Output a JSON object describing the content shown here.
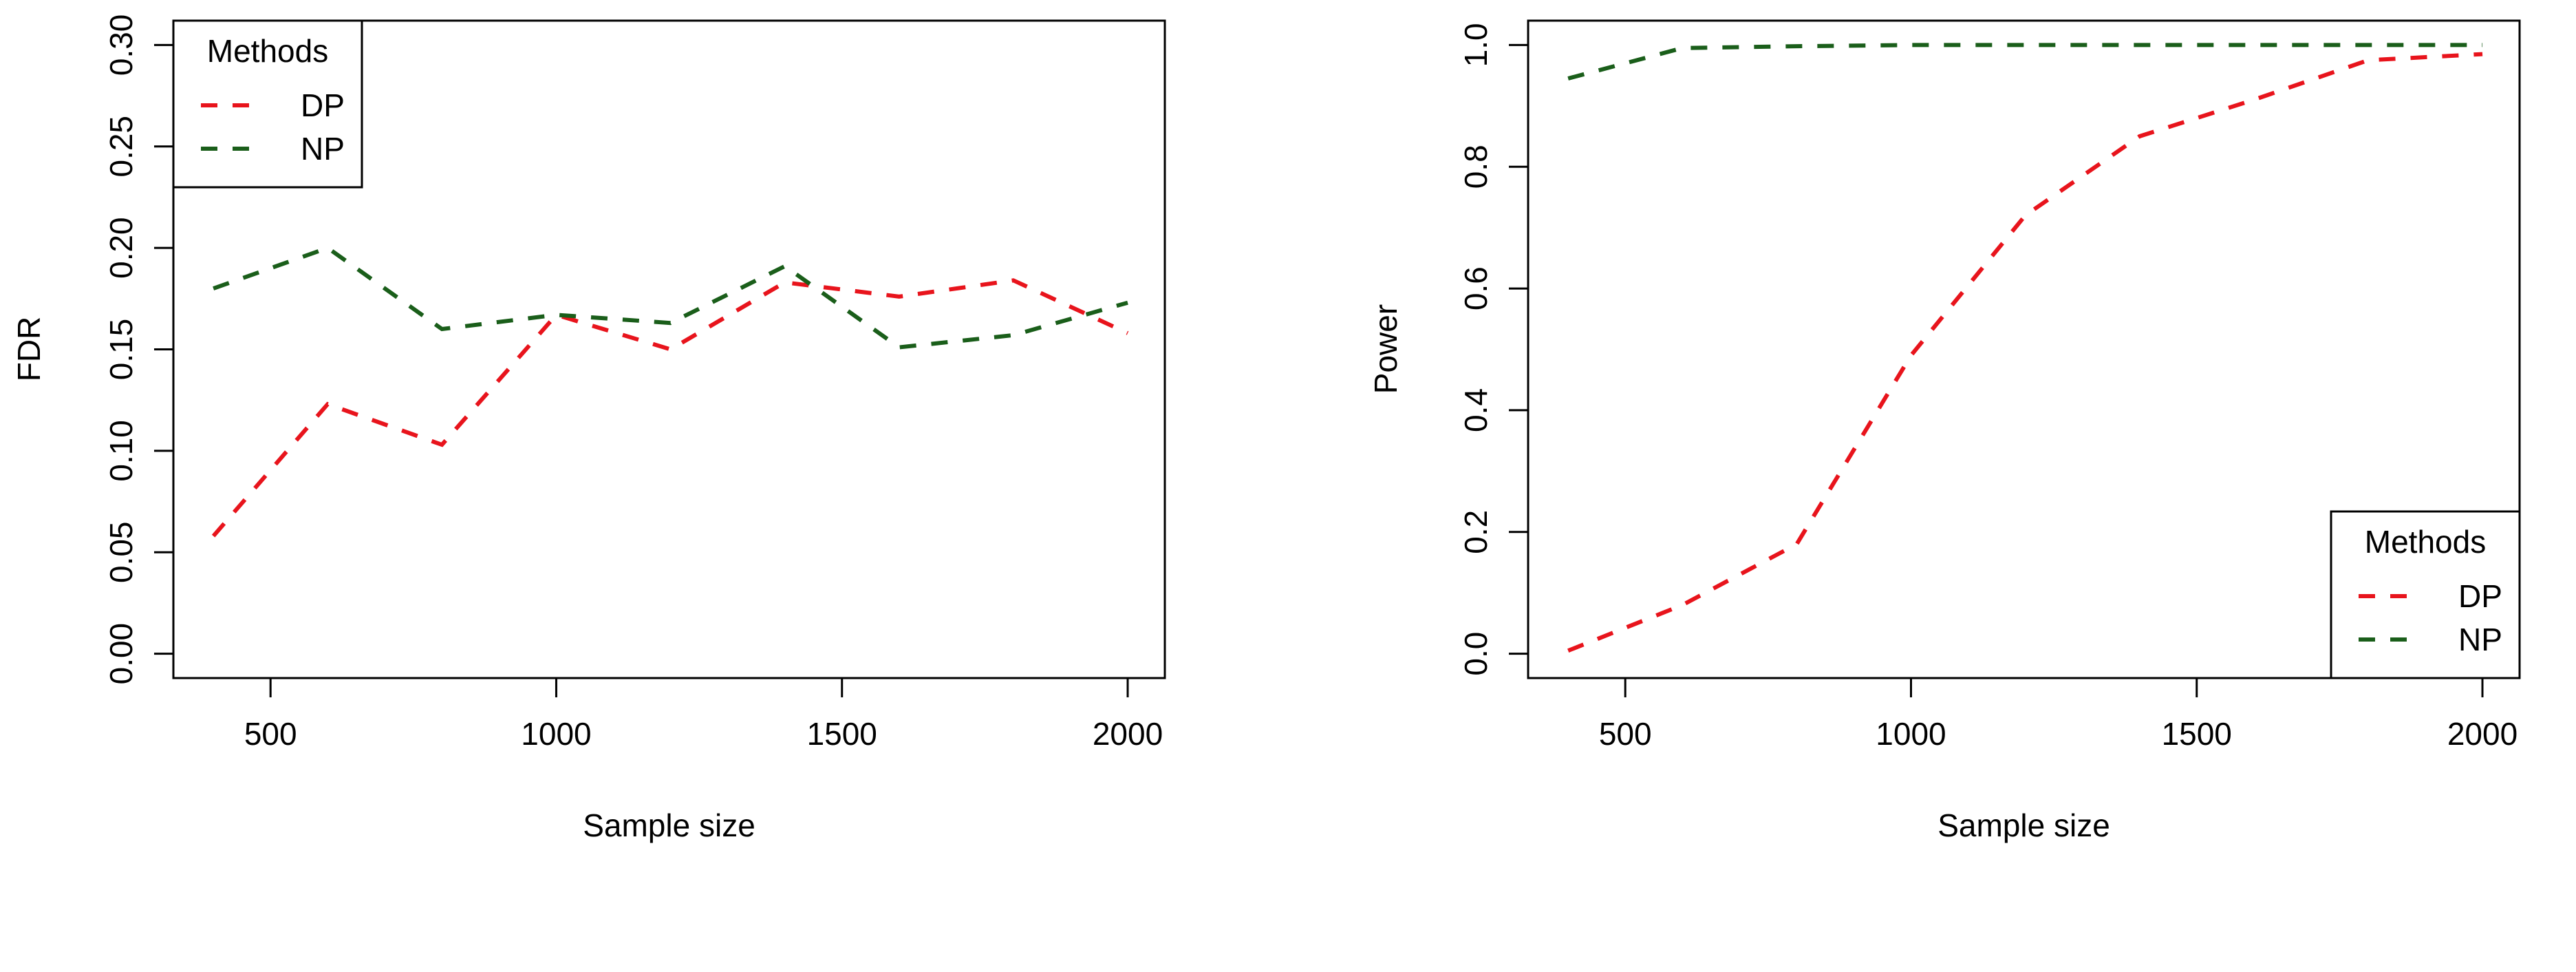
{
  "chart_data": [
    {
      "type": "line",
      "xlabel": "Sample size",
      "ylabel": "FDR",
      "xlim": [
        330,
        2065
      ],
      "ylim": [
        -0.012,
        0.312
      ],
      "x_ticks": [
        500,
        1000,
        1500,
        2000
      ],
      "x_tick_labels": [
        "500",
        "1000",
        "1500",
        "2000"
      ],
      "y_ticks": [
        0.0,
        0.05,
        0.1,
        0.15,
        0.2,
        0.25,
        0.3
      ],
      "y_tick_labels": [
        "0.00",
        "0.05",
        "0.10",
        "0.15",
        "0.20",
        "0.25",
        "0.30"
      ],
      "x": [
        400,
        600,
        800,
        1000,
        1200,
        1400,
        1600,
        1800,
        2000
      ],
      "series": [
        {
          "name": "DP",
          "color": "#e8141c",
          "values": [
            0.058,
            0.123,
            0.103,
            0.167,
            0.15,
            0.183,
            0.176,
            0.184,
            0.158
          ]
        },
        {
          "name": "NP",
          "color": "#1a5e1a",
          "values": [
            0.18,
            0.2,
            0.16,
            0.167,
            0.163,
            0.191,
            0.151,
            0.157,
            0.173
          ]
        }
      ],
      "legend": {
        "title": "Methods",
        "position": "top-left",
        "entries": [
          "DP",
          "NP"
        ]
      }
    },
    {
      "type": "line",
      "xlabel": "Sample size",
      "ylabel": "Power",
      "xlim": [
        330,
        2065
      ],
      "ylim": [
        -0.04,
        1.04
      ],
      "x_ticks": [
        500,
        1000,
        1500,
        2000
      ],
      "x_tick_labels": [
        "500",
        "1000",
        "1500",
        "2000"
      ],
      "y_ticks": [
        0.0,
        0.2,
        0.4,
        0.6,
        0.8,
        1.0
      ],
      "y_tick_labels": [
        "0.0",
        "0.2",
        "0.4",
        "0.6",
        "0.8",
        "1.0"
      ],
      "x": [
        400,
        600,
        800,
        1000,
        1200,
        1400,
        1600,
        1800,
        2000
      ],
      "series": [
        {
          "name": "DP",
          "color": "#e8141c",
          "values": [
            0.005,
            0.08,
            0.18,
            0.49,
            0.72,
            0.85,
            0.91,
            0.975,
            0.985
          ]
        },
        {
          "name": "NP",
          "color": "#1a5e1a",
          "values": [
            0.945,
            0.995,
            0.998,
            1.0,
            1.0,
            1.0,
            1.0,
            1.0,
            1.0
          ]
        }
      ],
      "legend": {
        "title": "Methods",
        "position": "bottom-right",
        "entries": [
          "DP",
          "NP"
        ]
      }
    }
  ]
}
